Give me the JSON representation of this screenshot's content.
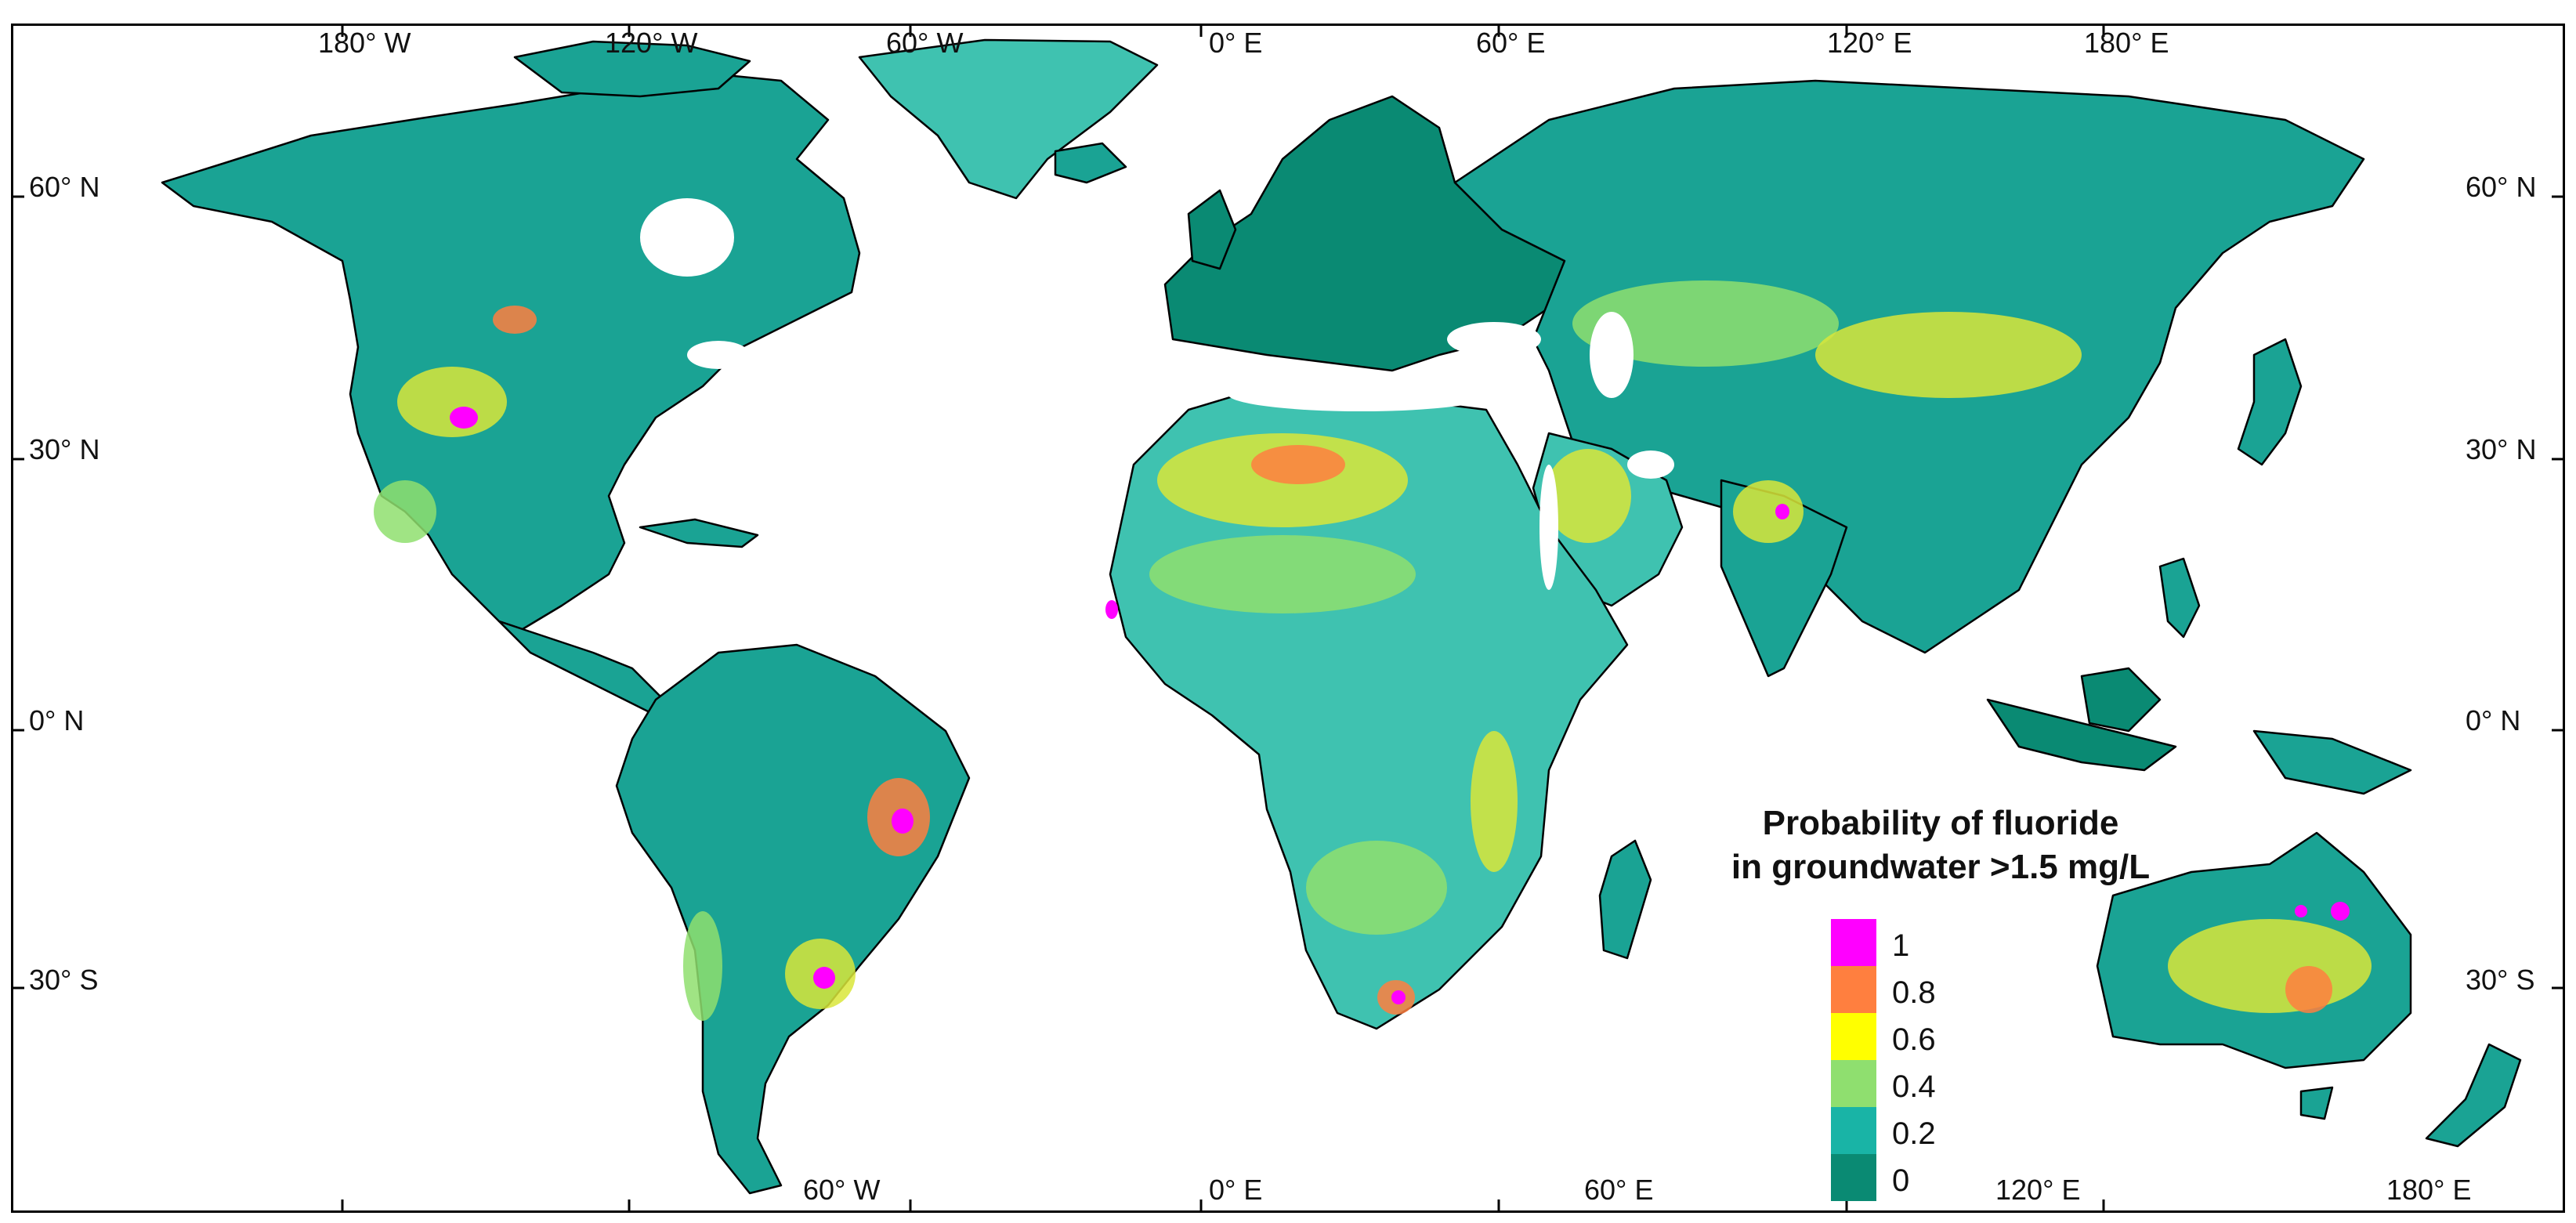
{
  "map": {
    "legend": {
      "title_line1": "Probability of fluoride",
      "title_line2": "in groundwater >1.5 mg/L",
      "entries": [
        {
          "label": "1",
          "color": "#ff00ff"
        },
        {
          "label": "0.8",
          "color": "#ff7f3f"
        },
        {
          "label": "0.6",
          "color": "#ffff00"
        },
        {
          "label": "0.4",
          "color": "#8fdf6f"
        },
        {
          "label": "0.2",
          "color": "#19b4a6"
        },
        {
          "label": "0",
          "color": "#0a8a73"
        }
      ]
    },
    "top_lon_labels": [
      "180° W",
      "120° W",
      "60° W",
      "0° E",
      "60° E",
      "120° E",
      "180° E"
    ],
    "bottom_lon_labels": [
      "60° W",
      "0° E",
      "60° E",
      "120° E",
      "180° E"
    ],
    "left_lat_labels": [
      "60° N",
      "30° N",
      "0° N",
      "30° S"
    ],
    "right_lat_labels": [
      "60° N",
      "30° N",
      "0° N",
      "30° S"
    ],
    "colors": {
      "land_base": "#1aa394",
      "land_dark": "#0a8a73",
      "land_light": "#3fc2b0",
      "ice": "#ffffff",
      "hotspot_yellow": "#d9e63a",
      "hotspot_green": "#8fdf6f",
      "hotspot_orange": "#ff7f3f",
      "hotspot_magenta": "#ff00ff",
      "border": "#000000"
    }
  }
}
